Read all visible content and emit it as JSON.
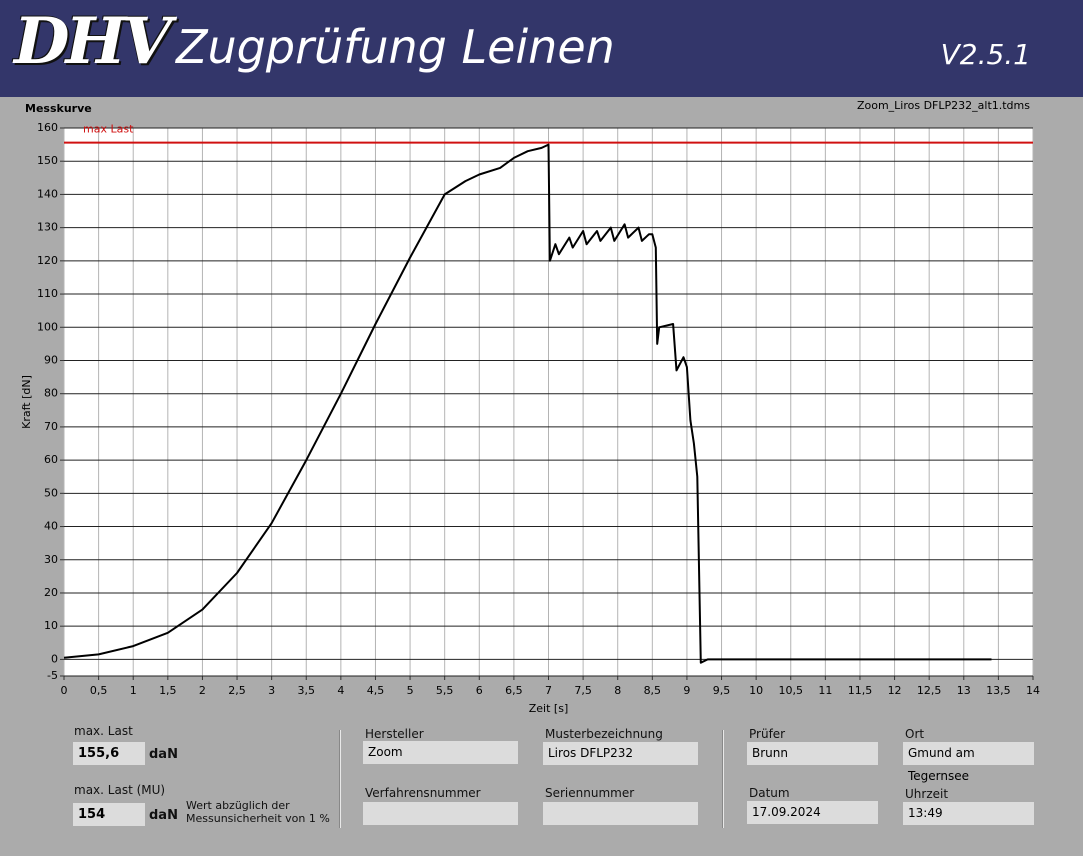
{
  "header": {
    "logo": "DHV",
    "title": "Zugprüfung Leinen",
    "version": "V2.5.1"
  },
  "chart_data": {
    "type": "line",
    "title": "Messkurve",
    "subtitle": "Zoom_Liros DFLP232_alt1.tdms",
    "x_label": "Zeit [s]",
    "y_label": "Kraft [dN]",
    "x": [
      0,
      0.5,
      1,
      1.5,
      2,
      2.5,
      3,
      3.5,
      4,
      4.5,
      5,
      5.5,
      5.8,
      6,
      6.3,
      6.5,
      6.7,
      6.9,
      7,
      7.02,
      7.1,
      7.15,
      7.3,
      7.35,
      7.5,
      7.55,
      7.7,
      7.75,
      7.9,
      7.95,
      8.1,
      8.15,
      8.3,
      8.35,
      8.45,
      8.5,
      8.55,
      8.57,
      8.6,
      8.8,
      8.85,
      8.95,
      9,
      9.05,
      9.1,
      9.15,
      9.2,
      9.3,
      10,
      11,
      12,
      13,
      13.4
    ],
    "series": [
      {
        "name": "Kraft",
        "color": "#000000",
        "values": [
          0.5,
          1.5,
          4,
          8,
          15,
          26,
          41,
          60,
          80,
          101,
          121,
          140,
          144,
          146,
          148,
          151,
          153,
          154,
          155,
          120,
          125,
          122,
          127,
          124,
          129,
          125,
          129,
          126,
          130,
          126,
          131,
          127,
          130,
          126,
          128,
          128,
          124,
          95,
          100,
          101,
          87,
          91,
          88,
          72,
          65,
          55,
          -1,
          0,
          0,
          0,
          0,
          0,
          0
        ]
      }
    ],
    "annotation": {
      "text": "max Last",
      "value": 155.6,
      "color": "#d01010"
    },
    "xlim": [
      0,
      14
    ],
    "ylim": [
      -5,
      160
    ],
    "xticks": [
      0,
      {
        "value": 0.5,
        "label": "0,5"
      },
      1,
      {
        "value": 1.5,
        "label": "1,5"
      },
      2,
      {
        "value": 2.5,
        "label": "2,5"
      },
      3,
      {
        "value": 3.5,
        "label": "3,5"
      },
      4,
      {
        "value": 4.5,
        "label": "4,5"
      },
      5,
      {
        "value": 5.5,
        "label": "5,5"
      },
      6,
      {
        "value": 6.5,
        "label": "6,5"
      },
      7,
      {
        "value": 7.5,
        "label": "7,5"
      },
      8,
      {
        "value": 8.5,
        "label": "8,5"
      },
      9,
      {
        "value": 9.5,
        "label": "9,5"
      },
      10,
      {
        "value": 10.5,
        "label": "10,5"
      },
      11,
      {
        "value": 11.5,
        "label": "11,5"
      },
      12,
      {
        "value": 12.5,
        "label": "12,5"
      },
      13,
      {
        "value": 13.5,
        "label": "13,5"
      },
      14
    ],
    "yticks": [
      -5,
      0,
      10,
      20,
      30,
      40,
      50,
      60,
      70,
      80,
      90,
      100,
      110,
      120,
      130,
      140,
      150,
      160
    ],
    "grid": true
  },
  "panel": {
    "max_last": {
      "label": "max. Last",
      "value": "155,6",
      "unit": "daN"
    },
    "max_last_mu": {
      "label": "max. Last (MU)",
      "value": "154",
      "unit": "daN",
      "note": [
        "Wert abzüglich der",
        "Messunsicherheit von 1 %"
      ]
    },
    "hersteller": {
      "label": "Hersteller",
      "value": "Zoom"
    },
    "musterbezeichnung": {
      "label": "Musterbezeichnung",
      "value": "Liros DFLP232"
    },
    "verfahrensnummer": {
      "label": "Verfahrensnummer"
    },
    "seriennummer": {
      "label": "Seriennummer"
    },
    "pruefer": {
      "label": "Prüfer",
      "value": "Brunn"
    },
    "ort": {
      "label": "Ort",
      "value": "Gmund am Tegernsee"
    },
    "datum": {
      "label": "Datum",
      "value": "17.09.2024"
    },
    "uhrzeit": {
      "label": "Uhrzeit",
      "value": "13:49"
    }
  }
}
